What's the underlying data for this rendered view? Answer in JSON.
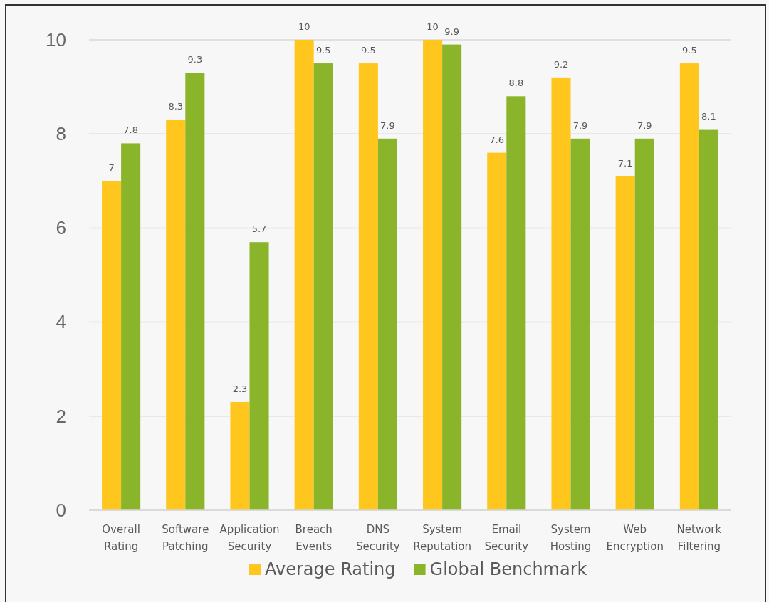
{
  "chart_data": {
    "type": "bar",
    "categories": [
      "Overall Rating",
      "Software Patching",
      "Application Security",
      "Breach Events",
      "DNS Security",
      "System Reputation",
      "Email Security",
      "System Hosting",
      "Web Encryption",
      "Network Filtering"
    ],
    "series": [
      {
        "name": "Average Rating",
        "color": "#ffc61e",
        "values": [
          7,
          8.3,
          2.3,
          10,
          9.5,
          10,
          7.6,
          9.2,
          7.1,
          9.5
        ]
      },
      {
        "name": "Global Benchmark",
        "color": "#8ab52a",
        "values": [
          7.8,
          9.3,
          5.7,
          9.5,
          7.9,
          9.9,
          8.8,
          7.9,
          7.9,
          8.1
        ]
      }
    ],
    "ylim": [
      0,
      10
    ],
    "yticks": [
      0,
      2,
      4,
      6,
      8,
      10
    ],
    "grid": "y",
    "legend": "bottom",
    "data_labels": true
  }
}
